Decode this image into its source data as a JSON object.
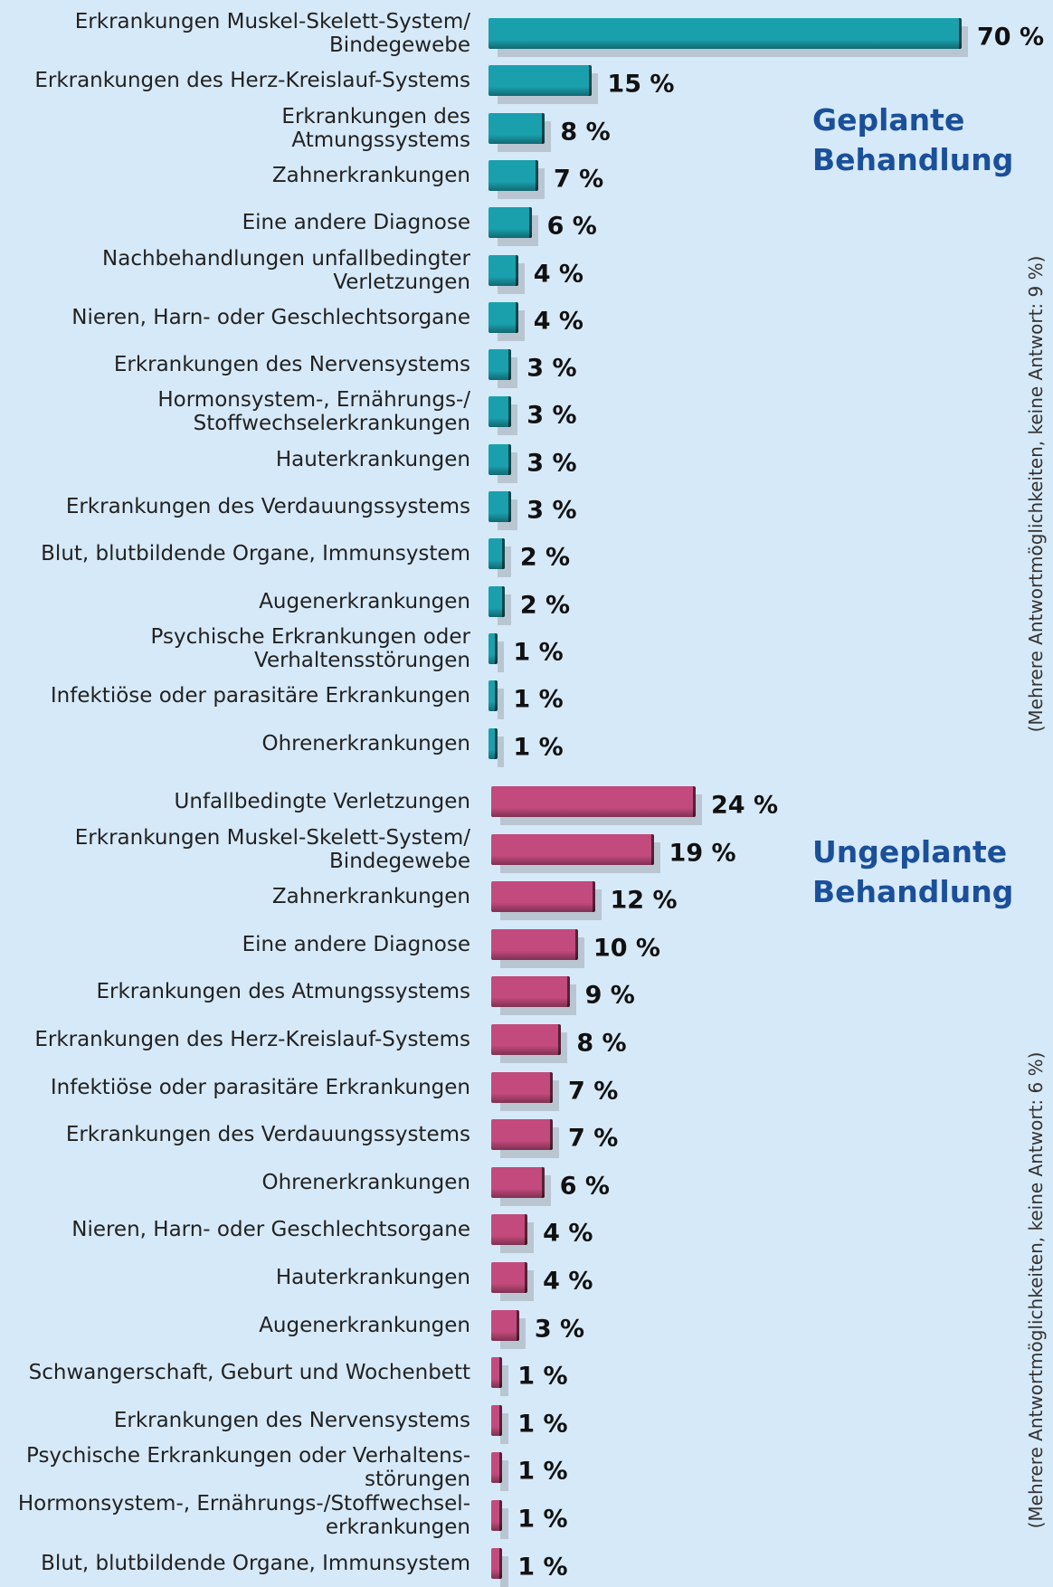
{
  "chart_data": [
    {
      "type": "bar",
      "title": "Geplante\nBehandlung",
      "note": "(Mehrere Antwortmöglichkeiten, keine Antwort: 9 %)",
      "color": "#1aa0ad",
      "categories": [
        "Erkrankungen Muskel-Skelett-System/\nBindegewebe",
        "Erkrankungen des Herz-Kreislauf-Systems",
        "Erkrankungen des\nAtmungssystems",
        "Zahnerkrankungen",
        "Eine andere Diagnose",
        "Nachbehandlungen unfallbedingter\nVerletzungen",
        "Nieren, Harn- oder Geschlechtsorgane",
        "Erkrankungen des Nervensystems",
        "Hormonsystem-, Ernährungs-/\nStoffwechselerkrankungen",
        "Hauterkrankungen",
        "Erkrankungen des Verdauungssystems",
        "Blut, blutbildende Organe, Immunsystem",
        "Augenerkrankungen",
        "Psychische Erkrankungen oder\nVerhaltensstörungen",
        "Infektiöse oder parasitäre Erkrankungen",
        "Ohrenerkrankungen"
      ],
      "values": [
        70,
        15,
        8,
        7,
        6,
        4,
        4,
        3,
        3,
        3,
        3,
        2,
        2,
        1,
        1,
        1
      ],
      "value_labels": [
        "70 %",
        "15 %",
        "8 %",
        "7 %",
        "6 %",
        "4 %",
        "4 %",
        "3 %",
        "3 %",
        "3 %",
        "3 %",
        "2 %",
        "2 %",
        "1 %",
        "1 %",
        "1 %"
      ]
    },
    {
      "type": "bar",
      "title": "Ungeplante\nBehandlung",
      "note": "(Mehrere Antwortmöglichkeiten, keine Antwort: 6 %)",
      "color": "#c24a7c",
      "categories": [
        "Unfallbedingte Verletzungen",
        "Erkrankungen Muskel-Skelett-System/\nBindegewebe",
        "Zahnerkrankungen",
        "Eine andere Diagnose",
        "Erkrankungen des Atmungssystems",
        "Erkrankungen des  Herz-Kreislauf-Systems",
        "Infektiöse oder parasitäre Erkrankungen",
        "Erkrankungen des Verdauungssystems",
        "Ohrenerkrankungen",
        "Nieren, Harn- oder Geschlechtsorgane",
        "Hauterkrankungen",
        "Augenerkrankungen",
        "Schwangerschaft, Geburt und Wochenbett",
        "Erkrankungen des Nervensystems",
        "Psychische Erkrankungen oder Verhaltens-\nstörungen",
        "Hormonsystem-, Ernährungs-/Stoffwechsel-\nerkrankungen",
        "Blut, blutbildende Organe, Immunsystem"
      ],
      "values": [
        24,
        19,
        12,
        10,
        9,
        8,
        7,
        7,
        6,
        4,
        4,
        3,
        1,
        1,
        1,
        1,
        1
      ],
      "value_labels": [
        "24 %",
        "19 %",
        "12 %",
        "10 %",
        "9 %",
        "8 %",
        "7 %",
        "7 %",
        "6 %",
        "4 %",
        "4 %",
        "3 %",
        "1 %",
        "1 %",
        "1 %",
        "1 %",
        "1 %"
      ]
    }
  ]
}
